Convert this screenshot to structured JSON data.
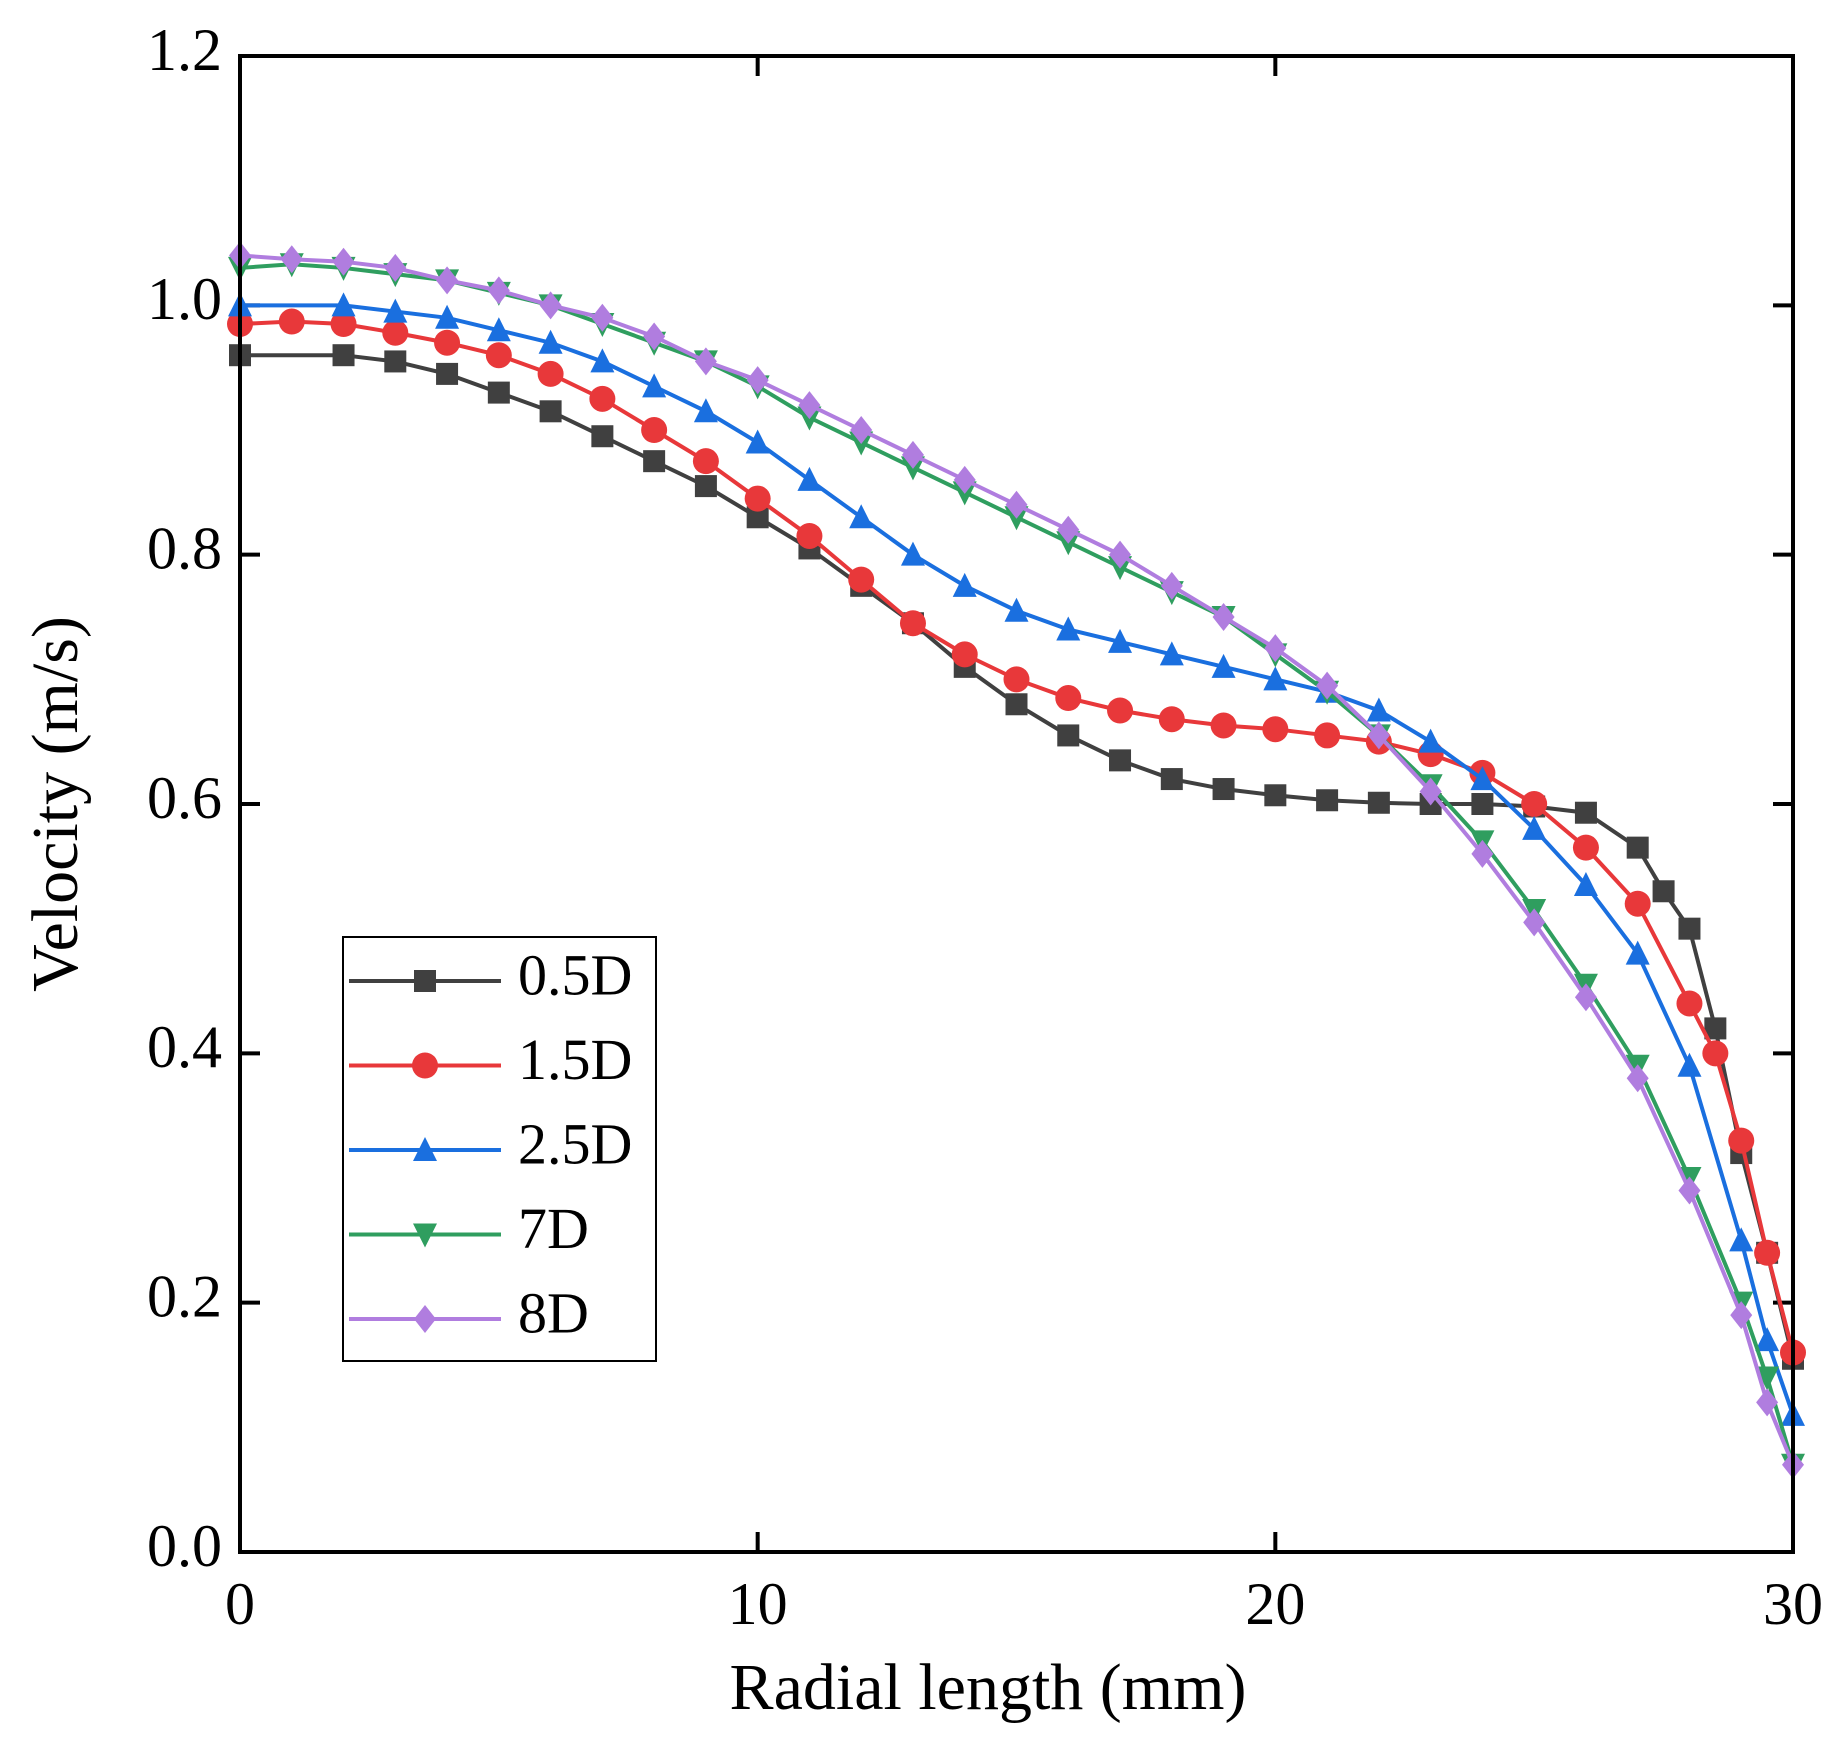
{
  "chart_data": {
    "type": "line",
    "x_label": "Radial length (mm)",
    "y_label": "Velocity (m/s)",
    "xlim": [
      0,
      30
    ],
    "xticks": [
      0,
      10,
      20,
      30
    ],
    "ylim": [
      0,
      1.2
    ],
    "yticks": [
      {
        "value": 0,
        "label": "0.0"
      },
      0.2,
      0.4,
      0.6,
      0.8,
      {
        "value": 1,
        "label": "1.0"
      },
      1.2
    ],
    "legend": "lower-left",
    "series": [
      {
        "name": "0.5D",
        "color": "#404040",
        "marker": "square",
        "x": [
          0,
          2,
          3,
          4,
          5,
          6,
          7,
          8,
          9,
          10,
          11,
          12,
          13,
          14,
          15,
          16,
          17,
          18,
          19,
          20,
          21,
          22,
          23,
          24,
          25,
          26,
          27,
          27.5,
          28,
          28.5,
          29,
          29.5,
          30
        ],
        "values": [
          0.96,
          0.96,
          0.955,
          0.945,
          0.93,
          0.915,
          0.895,
          0.875,
          0.855,
          0.83,
          0.805,
          0.775,
          0.745,
          0.71,
          0.68,
          0.655,
          0.635,
          0.62,
          0.612,
          0.607,
          0.603,
          0.601,
          0.6,
          0.6,
          0.598,
          0.593,
          0.565,
          0.53,
          0.5,
          0.42,
          0.32,
          0.24,
          0.155
        ]
      },
      {
        "name": "1.5D",
        "color": "#e8383a",
        "marker": "circle",
        "x": [
          0,
          1,
          2,
          3,
          4,
          5,
          6,
          7,
          8,
          9,
          10,
          11,
          12,
          13,
          14,
          15,
          16,
          17,
          18,
          19,
          20,
          21,
          22,
          23,
          24,
          25,
          26,
          27,
          28,
          28.5,
          29,
          29.5,
          30
        ],
        "values": [
          0.985,
          0.987,
          0.985,
          0.978,
          0.97,
          0.96,
          0.945,
          0.925,
          0.9,
          0.875,
          0.845,
          0.815,
          0.78,
          0.745,
          0.72,
          0.7,
          0.685,
          0.675,
          0.668,
          0.663,
          0.66,
          0.655,
          0.65,
          0.64,
          0.625,
          0.6,
          0.565,
          0.52,
          0.44,
          0.4,
          0.33,
          0.24,
          0.16
        ]
      },
      {
        "name": "2.5D",
        "color": "#1a6fdf",
        "marker": "triangle-up",
        "x": [
          0,
          2,
          3,
          4,
          5,
          6,
          7,
          8,
          9,
          10,
          11,
          12,
          13,
          14,
          15,
          16,
          17,
          18,
          19,
          20,
          21,
          22,
          23,
          24,
          25,
          26,
          27,
          28,
          29,
          29.5,
          30
        ],
        "values": [
          1.0,
          1.0,
          0.995,
          0.99,
          0.98,
          0.97,
          0.955,
          0.935,
          0.915,
          0.89,
          0.86,
          0.83,
          0.8,
          0.775,
          0.755,
          0.74,
          0.73,
          0.72,
          0.71,
          0.7,
          0.69,
          0.675,
          0.65,
          0.62,
          0.58,
          0.535,
          0.48,
          0.39,
          0.25,
          0.17,
          0.11
        ]
      },
      {
        "name": "7D",
        "color": "#2f9e5f",
        "marker": "triangle-down",
        "x": [
          0,
          1,
          2,
          3,
          4,
          5,
          6,
          7,
          8,
          9,
          10,
          11,
          12,
          13,
          14,
          15,
          16,
          17,
          18,
          19,
          20,
          21,
          22,
          23,
          24,
          25,
          26,
          27,
          28,
          29,
          29.5,
          30
        ],
        "values": [
          1.03,
          1.033,
          1.03,
          1.025,
          1.02,
          1.01,
          1.0,
          0.985,
          0.97,
          0.955,
          0.935,
          0.91,
          0.89,
          0.87,
          0.85,
          0.83,
          0.81,
          0.79,
          0.77,
          0.75,
          0.72,
          0.69,
          0.655,
          0.615,
          0.57,
          0.515,
          0.455,
          0.39,
          0.3,
          0.2,
          0.14,
          0.07
        ]
      },
      {
        "name": "8D",
        "color": "#b07ddf",
        "marker": "diamond",
        "x": [
          0,
          1,
          2,
          3,
          4,
          5,
          6,
          7,
          8,
          9,
          10,
          11,
          12,
          13,
          14,
          15,
          16,
          17,
          18,
          19,
          20,
          21,
          22,
          23,
          24,
          25,
          26,
          27,
          28,
          29,
          29.5,
          30
        ],
        "values": [
          1.04,
          1.037,
          1.035,
          1.03,
          1.02,
          1.012,
          1.0,
          0.99,
          0.975,
          0.955,
          0.94,
          0.92,
          0.9,
          0.88,
          0.86,
          0.84,
          0.82,
          0.8,
          0.775,
          0.75,
          0.725,
          0.695,
          0.655,
          0.61,
          0.56,
          0.505,
          0.445,
          0.38,
          0.29,
          0.19,
          0.12,
          0.07
        ]
      }
    ]
  }
}
